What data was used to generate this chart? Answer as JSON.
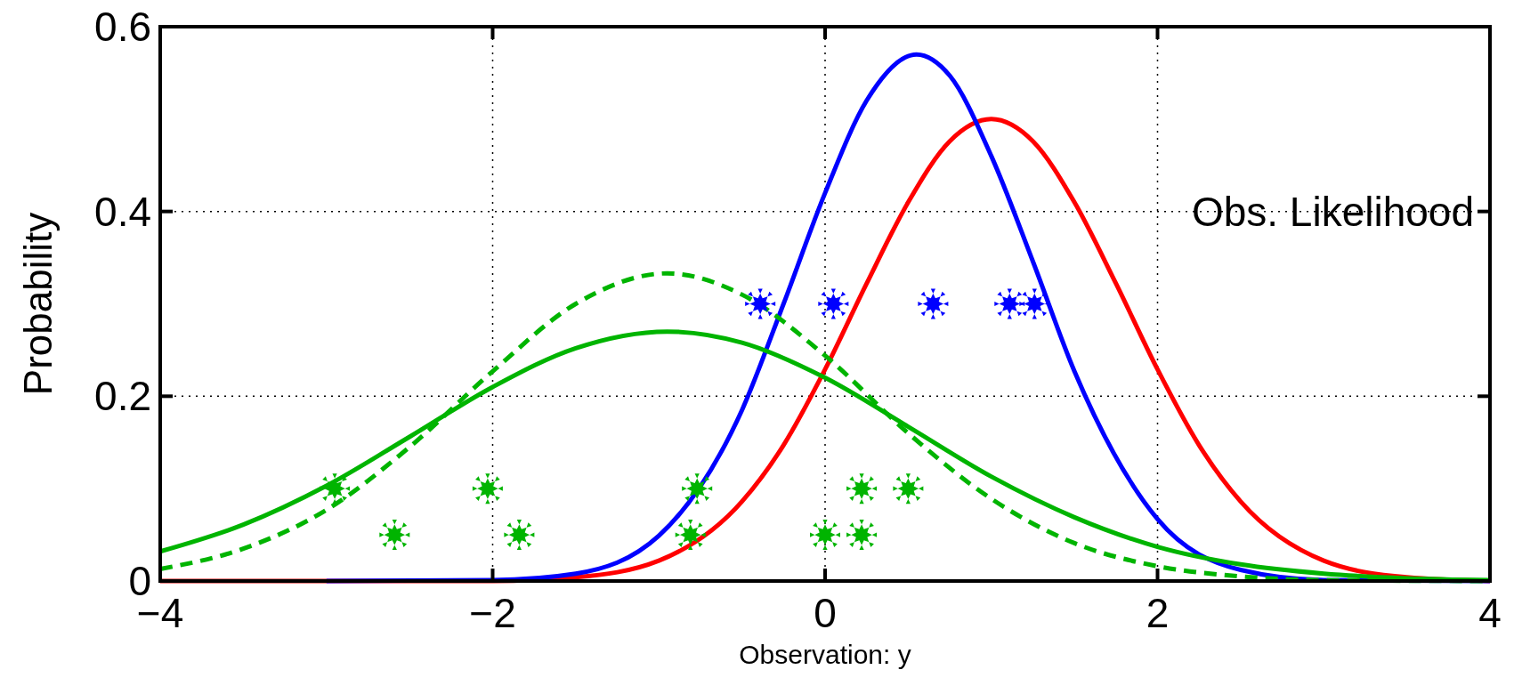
{
  "chart_data": {
    "type": "line",
    "xlabel": "Observation: y",
    "ylabel": "Probability",
    "annotations": [
      "Obs. Likelihood"
    ],
    "xlim": [
      -4,
      4
    ],
    "ylim": [
      0,
      0.6
    ],
    "xticks": [
      {
        "value": -4,
        "label": "−4"
      },
      {
        "value": -2,
        "label": "−2"
      },
      0,
      2,
      4
    ],
    "yticks": [
      0,
      0.2,
      0.4,
      0.6
    ],
    "grid": true,
    "line_style": "solid",
    "series": [
      {
        "color": "#ff0000",
        "x": [
          -4,
          -3,
          -2,
          -1.5,
          -1,
          -0.5,
          -0.25,
          0,
          0.25,
          0.5,
          0.75,
          1,
          1.25,
          1.5,
          1.75,
          2,
          2.25,
          2.5,
          3,
          3.5,
          4
        ],
        "values": [
          0,
          0,
          0,
          0.004,
          0.022,
          0.086,
          0.147,
          0.229,
          0.322,
          0.41,
          0.476,
          0.5,
          0.476,
          0.41,
          0.322,
          0.229,
          0.147,
          0.086,
          0.022,
          0.004,
          0
        ]
      },
      {
        "color": "#0000ff",
        "x": [
          -3,
          -2,
          -1.5,
          -1,
          -0.5,
          -0.25,
          0,
          0.25,
          0.55,
          0.75,
          1,
          1.25,
          1.5,
          2,
          2.5,
          3,
          4
        ],
        "values": [
          0,
          0.001,
          0.008,
          0.049,
          0.185,
          0.3,
          0.42,
          0.52,
          0.57,
          0.547,
          0.46,
          0.346,
          0.227,
          0.067,
          0.012,
          0.001,
          0
        ]
      },
      {
        "color": "#00b400",
        "x": [
          -4,
          -3.5,
          -3,
          -2.5,
          -2,
          -1.5,
          -0.95,
          -0.5,
          0,
          0.5,
          1,
          1.5,
          2,
          2.5,
          3,
          3.5,
          4
        ],
        "values": [
          0.032,
          0.061,
          0.103,
          0.156,
          0.21,
          0.252,
          0.27,
          0.258,
          0.22,
          0.167,
          0.113,
          0.069,
          0.037,
          0.018,
          0.008,
          0.003,
          0.001
        ]
      },
      {
        "color": "#00b400",
        "line_style": "dashed",
        "x": [
          -4,
          -3.5,
          -3,
          -2.5,
          -2,
          -1.5,
          -0.95,
          -0.5,
          0,
          0.5,
          1,
          1.5,
          2,
          2.5,
          3,
          4
        ],
        "values": [
          0.013,
          0.035,
          0.077,
          0.145,
          0.227,
          0.3,
          0.333,
          0.31,
          0.244,
          0.16,
          0.089,
          0.041,
          0.016,
          0.005,
          0.001,
          0
        ]
      },
      {
        "type": "scatter",
        "marker": "star",
        "color": "#0000ff",
        "x": [
          -0.39,
          0.05,
          0.65,
          1.11,
          1.26
        ],
        "values": [
          0.3,
          0.3,
          0.3,
          0.3,
          0.3
        ]
      },
      {
        "type": "scatter",
        "marker": "star",
        "color": "#00b400",
        "x": [
          -2.95,
          -2.03,
          -0.77,
          0.22,
          0.5
        ],
        "values": [
          0.1,
          0.1,
          0.1,
          0.1,
          0.1
        ]
      },
      {
        "type": "scatter",
        "marker": "star",
        "color": "#00b400",
        "x": [
          -2.59,
          -1.84,
          -0.81,
          0,
          0.22
        ],
        "values": [
          0.05,
          0.05,
          0.05,
          0.05,
          0.05
        ]
      }
    ]
  }
}
